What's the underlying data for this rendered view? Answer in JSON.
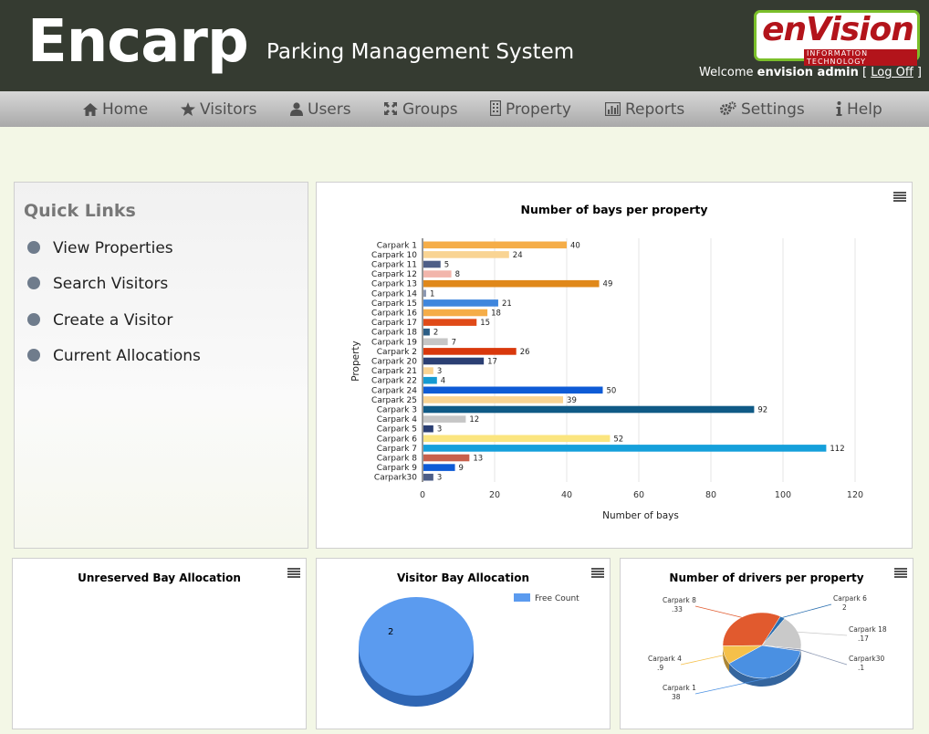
{
  "header": {
    "logo": "Encarp",
    "subtitle": "Parking Management System",
    "brand_name": "enVision",
    "brand_sub": "INFORMATION TECHNOLOGY",
    "welcome_prefix": "Welcome",
    "user": "envision admin",
    "logoff": "Log Off"
  },
  "nav": {
    "items": [
      {
        "label": "Home",
        "icon": "home-icon"
      },
      {
        "label": "Visitors",
        "icon": "star-icon"
      },
      {
        "label": "Users",
        "icon": "user-icon"
      },
      {
        "label": "Groups",
        "icon": "groups-icon"
      },
      {
        "label": "Property",
        "icon": "building-icon"
      },
      {
        "label": "Reports",
        "icon": "bar-chart-icon"
      },
      {
        "label": "Settings",
        "icon": "gears-icon"
      },
      {
        "label": "Help",
        "icon": "info-icon"
      }
    ]
  },
  "quick_links": {
    "title": "Quick Links",
    "items": [
      "View Properties",
      "Search Visitors",
      "Create a Visitor",
      "Current Allocations"
    ]
  },
  "colors": {
    "header_bg": "#353b31",
    "nav_bg": "#c0c0c0",
    "brand_red": "#b3141b",
    "brand_green": "#7bbf2a"
  },
  "chart_data": [
    {
      "type": "bar",
      "orientation": "horizontal",
      "title": "Number of bays per property",
      "xlabel": "Number of bays",
      "ylabel": "Property",
      "xlim": [
        0,
        120
      ],
      "xticks": [
        0,
        20,
        40,
        60,
        80,
        100,
        120
      ],
      "grid": true,
      "categories": [
        "Carpark 1",
        "Carpark 10",
        "Carpark 11",
        "Carpark 12",
        "Carpark 13",
        "Carpark 14",
        "Carpark 15",
        "Carpark 16",
        "Carpark 17",
        "Carpark 18",
        "Carpark 19",
        "Carpark 2",
        "Carpark 20",
        "Carpark 21",
        "Carpark 22",
        "Carpark 24",
        "Carpark 25",
        "Carpark 3",
        "Carpark 4",
        "Carpark 5",
        "Carpark 6",
        "Carpark 7",
        "Carpark 8",
        "Carpark 9",
        "Carpark30"
      ],
      "values": [
        40,
        24,
        5,
        8,
        49,
        1,
        21,
        18,
        15,
        2,
        7,
        26,
        17,
        3,
        4,
        50,
        39,
        92,
        12,
        3,
        52,
        112,
        13,
        9,
        3
      ],
      "colors": [
        "#f5ad48",
        "#f9d493",
        "#4d5e87",
        "#f2b5ab",
        "#e0881a",
        "#8a97b2",
        "#3f86dd",
        "#f5ad48",
        "#e04a18",
        "#2c5d85",
        "#c6c6c6",
        "#d9380c",
        "#2b3f73",
        "#f9d493",
        "#149ad2",
        "#0e5bd6",
        "#f9d493",
        "#0f5a86",
        "#c6c6c6",
        "#2b3f73",
        "#fbe57f",
        "#15a0db",
        "#c8604c",
        "#0e5bd6",
        "#4d5e87"
      ]
    },
    {
      "type": "pie",
      "title": "Unreserved Bay Allocation",
      "slices": []
    },
    {
      "type": "pie",
      "title": "Visitor Bay Allocation",
      "legend": [
        "Free Count"
      ],
      "legend_position": "top-right",
      "slices": [
        {
          "label": "2",
          "value": 2,
          "color": "#5b9bef"
        }
      ]
    },
    {
      "type": "pie",
      "title": "Number of drivers per property",
      "slices": [
        {
          "name": "Carpark 6",
          "value": 2,
          "label": "2",
          "color": "#2a6fb0"
        },
        {
          "name": "Carpark 18",
          "value": 17,
          "label": ".17",
          "color": "#c9c9c9"
        },
        {
          "name": "Carpark30",
          "value": 1,
          "label": ".1",
          "color": "#8a97b2"
        },
        {
          "name": "Carpark 1",
          "value": 38,
          "label": "38",
          "color": "#4a90e2"
        },
        {
          "name": "Carpark 4",
          "value": 9,
          "label": ".9",
          "color": "#f5c04a"
        },
        {
          "name": "Carpark 8",
          "value": 33,
          "label": ".33",
          "color": "#e15a2e"
        }
      ]
    }
  ]
}
